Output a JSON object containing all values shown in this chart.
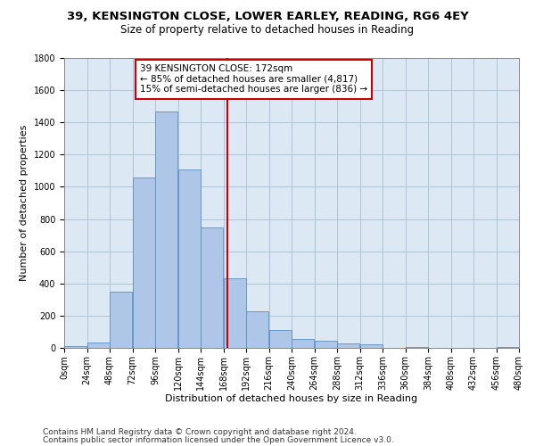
{
  "title": "39, KENSINGTON CLOSE, LOWER EARLEY, READING, RG6 4EY",
  "subtitle": "Size of property relative to detached houses in Reading",
  "xlabel": "Distribution of detached houses by size in Reading",
  "ylabel": "Number of detached properties",
  "footer_line1": "Contains HM Land Registry data © Crown copyright and database right 2024.",
  "footer_line2": "Contains public sector information licensed under the Open Government Licence v3.0.",
  "annotation_line1": "39 KENSINGTON CLOSE: 172sqm",
  "annotation_line2": "← 85% of detached houses are smaller (4,817)",
  "annotation_line3": "15% of semi-detached houses are larger (836) →",
  "property_size": 172,
  "bin_edges": [
    0,
    24,
    48,
    72,
    96,
    120,
    144,
    168,
    192,
    216,
    240,
    264,
    288,
    312,
    336,
    360,
    384,
    408,
    432,
    456,
    480
  ],
  "bar_heights": [
    10,
    35,
    350,
    1060,
    1470,
    1110,
    745,
    430,
    225,
    110,
    55,
    45,
    30,
    20,
    0,
    5,
    0,
    0,
    0,
    5
  ],
  "bar_color": "#aec6e8",
  "bar_edge_color": "#5a8fc0",
  "vline_color": "#cc0000",
  "vline_x": 172,
  "annotation_box_color": "#cc0000",
  "background_color": "#ffffff",
  "plot_bg_color": "#dce9f5",
  "grid_color": "#b0c4d8",
  "ylim": [
    0,
    1800
  ],
  "yticks": [
    0,
    200,
    400,
    600,
    800,
    1000,
    1200,
    1400,
    1600,
    1800
  ],
  "title_fontsize": 9.5,
  "subtitle_fontsize": 8.5,
  "xlabel_fontsize": 8,
  "ylabel_fontsize": 8,
  "tick_fontsize": 7,
  "annotation_fontsize": 7.5,
  "footer_fontsize": 6.5
}
